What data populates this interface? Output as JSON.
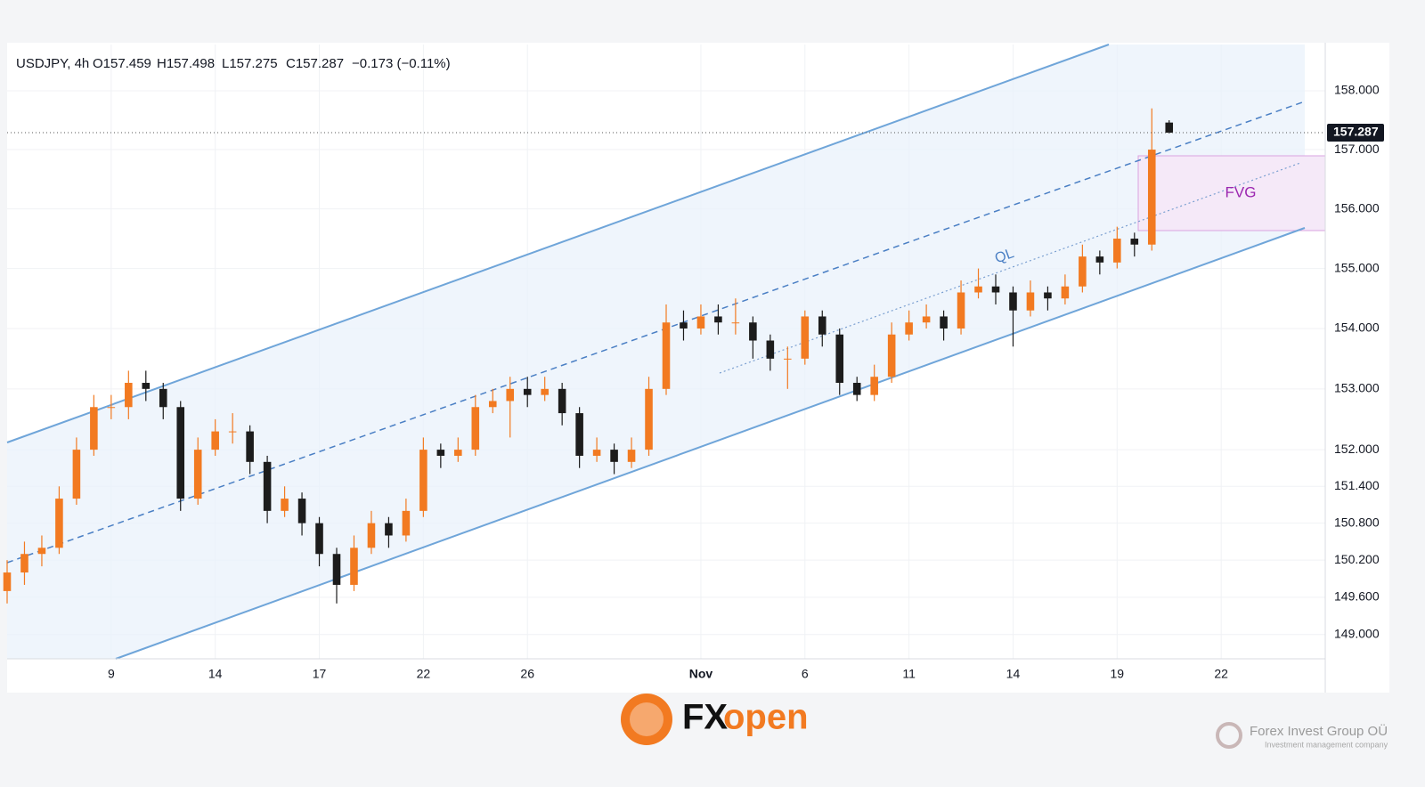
{
  "chart_data": {
    "type": "candlestick",
    "symbol": "USDJPY, 4h",
    "ohlc_labels": [
      "O157.459",
      "H157.498",
      "L157.275",
      "C157.287"
    ],
    "change_label": "−0.173 (−0.11%)",
    "x": [
      0,
      0.5,
      1,
      1.5,
      2,
      2.5,
      3,
      3.5,
      4,
      4.5,
      5,
      5.5,
      6,
      6.5,
      7,
      7.5,
      8,
      8.5,
      9,
      9.5,
      10,
      10.5,
      11,
      11.5,
      12,
      12.5,
      13,
      13.5,
      14,
      14.5,
      15,
      15.5,
      16,
      16.5,
      17,
      17.5,
      18,
      18.5,
      19,
      19.5,
      20,
      20.5,
      21,
      21.5,
      22,
      22.5,
      23,
      23.5,
      24,
      24.5,
      25,
      25.5,
      26,
      26.5,
      27,
      27.5,
      28,
      28.5,
      29,
      29.5,
      30,
      30.5,
      31,
      31.5,
      32,
      32.5,
      33,
      33.5
    ],
    "open": [
      149.7,
      150.0,
      150.3,
      150.4,
      151.2,
      152.0,
      152.7,
      152.7,
      153.1,
      153.0,
      152.7,
      151.2,
      152.0,
      152.3,
      152.3,
      151.8,
      151.0,
      151.2,
      150.8,
      150.3,
      149.8,
      150.4,
      150.8,
      150.6,
      151.0,
      152.0,
      151.9,
      152.0,
      152.7,
      152.8,
      153.0,
      152.9,
      153.0,
      152.6,
      151.9,
      152.0,
      151.8,
      152.0,
      153.0,
      154.1,
      154.0,
      154.2,
      154.1,
      154.1,
      153.8,
      153.5,
      153.5,
      154.2,
      153.9,
      153.1,
      152.9,
      153.2,
      153.9,
      154.1,
      154.2,
      154.0,
      154.6,
      154.7,
      154.6,
      154.3,
      154.6,
      154.5,
      154.7,
      155.2,
      155.1,
      155.5,
      155.4,
      157.459
    ],
    "high": [
      150.2,
      150.5,
      150.6,
      151.4,
      152.2,
      152.9,
      152.9,
      153.3,
      153.3,
      153.1,
      152.8,
      152.2,
      152.5,
      152.6,
      152.4,
      151.9,
      151.4,
      151.3,
      150.9,
      150.4,
      150.6,
      151.0,
      150.9,
      151.2,
      152.2,
      152.1,
      152.2,
      152.9,
      153.0,
      153.2,
      153.2,
      153.2,
      153.1,
      152.7,
      152.2,
      152.1,
      152.2,
      153.2,
      154.4,
      154.3,
      154.4,
      154.4,
      154.5,
      154.2,
      153.9,
      153.7,
      154.3,
      154.3,
      154.0,
      153.2,
      153.4,
      154.1,
      154.3,
      154.4,
      154.3,
      154.8,
      155.0,
      154.9,
      154.7,
      154.8,
      154.7,
      154.9,
      155.4,
      155.3,
      155.7,
      155.6,
      157.7,
      157.498
    ],
    "low": [
      149.5,
      149.8,
      150.1,
      150.3,
      151.1,
      151.9,
      152.5,
      152.5,
      152.8,
      152.5,
      151.0,
      151.1,
      151.9,
      152.1,
      151.6,
      150.8,
      150.9,
      150.6,
      150.1,
      149.5,
      149.7,
      150.3,
      150.4,
      150.5,
      150.9,
      151.7,
      151.8,
      151.9,
      152.6,
      152.2,
      152.7,
      152.8,
      152.4,
      151.7,
      151.8,
      151.6,
      151.7,
      151.9,
      152.9,
      153.8,
      153.9,
      153.9,
      153.9,
      153.5,
      153.3,
      153.0,
      153.4,
      153.7,
      152.9,
      152.8,
      152.8,
      153.1,
      153.8,
      154.0,
      153.8,
      153.9,
      154.5,
      154.4,
      153.7,
      154.2,
      154.3,
      154.4,
      154.6,
      154.9,
      155.0,
      155.2,
      155.3,
      157.275
    ],
    "close": [
      150.0,
      150.3,
      150.4,
      151.2,
      152.0,
      152.7,
      152.7,
      153.1,
      153.0,
      152.7,
      151.2,
      152.0,
      152.3,
      152.3,
      151.8,
      151.0,
      151.2,
      150.8,
      150.3,
      149.8,
      150.4,
      150.8,
      150.6,
      151.0,
      152.0,
      151.9,
      152.0,
      152.7,
      152.8,
      153.0,
      152.9,
      153.0,
      152.6,
      151.9,
      152.0,
      151.8,
      152.0,
      153.0,
      154.1,
      154.0,
      154.2,
      154.1,
      154.1,
      153.8,
      153.5,
      153.5,
      154.2,
      153.9,
      153.1,
      152.9,
      153.2,
      153.9,
      154.1,
      154.2,
      154.0,
      154.6,
      154.7,
      154.6,
      154.3,
      154.6,
      154.5,
      154.7,
      155.2,
      155.1,
      155.5,
      155.4,
      157.0,
      157.287
    ],
    "up_color": "#f27a21",
    "down_color": "#1c1c1c",
    "xlim": [
      0,
      38
    ],
    "xticks": [
      {
        "value": 3,
        "label": "9"
      },
      {
        "value": 6,
        "label": "14"
      },
      {
        "value": 9,
        "label": "17"
      },
      {
        "value": 12,
        "label": "22"
      },
      {
        "value": 15,
        "label": "26"
      },
      {
        "value": 20,
        "label": "Nov"
      },
      {
        "value": 23,
        "label": "6"
      },
      {
        "value": 26,
        "label": "11"
      },
      {
        "value": 29,
        "label": "14"
      },
      {
        "value": 32,
        "label": "19"
      },
      {
        "value": 35,
        "label": "22"
      }
    ],
    "ylim": [
      148.61,
      158.79
    ],
    "log_scale": true,
    "yticks": [
      {
        "value": 158,
        "label": "158.000"
      },
      {
        "value": 157,
        "label": "157.000"
      },
      {
        "value": 156,
        "label": "156.000"
      },
      {
        "value": 155,
        "label": "155.000"
      },
      {
        "value": 154,
        "label": "154.000"
      },
      {
        "value": 153,
        "label": "153.000"
      },
      {
        "value": 152,
        "label": "152.000"
      },
      {
        "value": 151.4,
        "label": "151.400"
      },
      {
        "value": 150.8,
        "label": "150.800"
      },
      {
        "value": 150.2,
        "label": "150.200"
      },
      {
        "value": 149.6,
        "label": "149.600"
      },
      {
        "value": 149,
        "label": "149.000"
      }
    ],
    "grid": true,
    "last_price": {
      "value": 157.287,
      "label": "157.287"
    },
    "annotations": [
      "QL",
      "FVG"
    ]
  },
  "footer": {
    "brand_fx": "FX",
    "brand_open": "open",
    "company": "Forex Invest Group OÜ",
    "company_tagline": "Investment management company"
  }
}
